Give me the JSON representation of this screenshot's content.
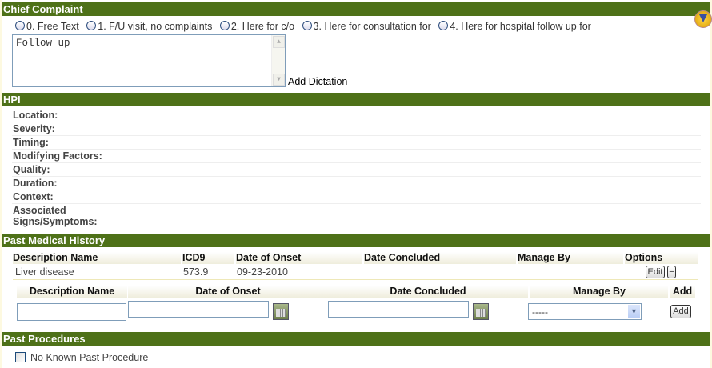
{
  "chief_complaint": {
    "title": "Chief Complaint",
    "options": [
      "0. Free Text",
      "1. F/U visit, no complaints",
      "2. Here for c/o",
      "3. Here for consultation for",
      "4. Here for hospital follow up for"
    ],
    "text": "Follow up",
    "add_dictation": "Add Dictation"
  },
  "hpi": {
    "title": "HPI",
    "fields": [
      "Location:",
      "Severity:",
      "Timing:",
      "Modifying Factors:",
      "Quality:",
      "Duration:",
      "Context:",
      "Associated",
      "Signs/Symptoms:"
    ]
  },
  "pmh": {
    "title": "Past Medical History",
    "columns": [
      "Description Name",
      "ICD9",
      "Date of Onset",
      "Date Concluded",
      "Manage By",
      "Options"
    ],
    "rows": [
      {
        "description": "Liver disease",
        "icd9": "573.9",
        "onset": "09-23-2010",
        "concluded": "",
        "manage_by": ""
      }
    ],
    "edit_label": "Edit",
    "remove_label": "−",
    "add_columns": [
      "Description Name",
      "Date of Onset",
      "Date Concluded",
      "Manage By",
      "Add"
    ],
    "manage_select": "-----",
    "add_label": "Add"
  },
  "past_procedures": {
    "title": "Past Procedures",
    "no_known": "No Known Past Procedure"
  }
}
